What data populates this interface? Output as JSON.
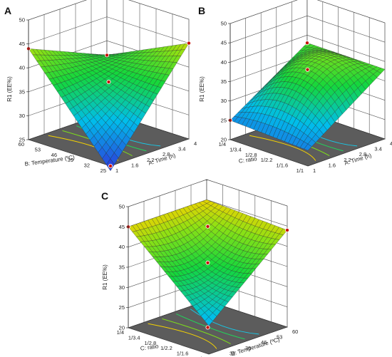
{
  "figure": {
    "panels": [
      {
        "letter": "A"
      },
      {
        "letter": "B"
      },
      {
        "letter": "C"
      }
    ]
  },
  "chart_data": [
    {
      "type": "surface",
      "panel": "A",
      "zlabel": "R1 (EE%)",
      "zlim": [
        25,
        50
      ],
      "zticks": [
        "25",
        "30",
        "35",
        "40",
        "45",
        "50"
      ],
      "xlabel": "A: Time (h)",
      "xticks": [
        "1",
        "1.6",
        "2.2",
        "2.8",
        "3.4",
        "4"
      ],
      "ylabel": "B: Temperature (ºC)",
      "yticks": [
        "25",
        "32",
        "39",
        "46",
        "53",
        "60"
      ],
      "corners": {
        "x_low_y_low": 24,
        "x_high_y_low": 45,
        "x_low_y_high": 44,
        "x_high_y_high": 37
      },
      "center": 37,
      "design_points": [
        {
          "x": 1,
          "y": 60,
          "z": 44
        },
        {
          "x": 4,
          "y": 25,
          "z": 45
        },
        {
          "x": 4,
          "y": 60,
          "z": 37
        },
        {
          "x": 2.5,
          "y": 42.5,
          "z": 37
        },
        {
          "x": 1,
          "y": 25,
          "z": 24
        }
      ]
    },
    {
      "type": "surface",
      "panel": "B",
      "zlabel": "R1 (EE%)",
      "zlim": [
        20,
        50
      ],
      "zticks": [
        "20",
        "25",
        "30",
        "35",
        "40",
        "45",
        "50"
      ],
      "xlabel": "A: Time (h)",
      "xticks": [
        "1",
        "1.6",
        "2.2",
        "2.8",
        "3.4",
        "4"
      ],
      "ylabel": "C: ratio",
      "yticks": [
        "1/1",
        "1/1.6",
        "1/2.2",
        "1/2.8",
        "1/3.4",
        "1/4"
      ],
      "corners": {
        "x_low_y_low": 24,
        "x_high_y_low": 38,
        "x_low_y_high": 25,
        "x_high_y_high": 38
      },
      "center": 38,
      "design_points": [
        {
          "x": 1,
          "y": 4,
          "z": 25
        },
        {
          "x": 2.5,
          "y": 2.5,
          "z": 38
        },
        {
          "x": 4,
          "y": 4,
          "z": 38
        }
      ]
    },
    {
      "type": "surface",
      "panel": "C",
      "zlabel": "R1 (EE%)",
      "zlim": [
        20,
        50
      ],
      "zticks": [
        "20",
        "25",
        "30",
        "35",
        "40",
        "45",
        "50"
      ],
      "xlabel": "B: Temperature (ºC)",
      "xticks": [
        "25",
        "32",
        "39",
        "46",
        "53",
        "60"
      ],
      "ylabel": "C: ratio",
      "yticks": [
        "1/1",
        "1/1.6",
        "1/2.2",
        "1/2.8",
        "1/3.4",
        "1/4"
      ],
      "corners": {
        "x_low_y_low": 27,
        "x_high_y_low": 44,
        "x_low_y_high": 45,
        "x_high_y_high": 45
      },
      "center": 36,
      "design_points": [
        {
          "x": 25,
          "y": 4,
          "z": 45
        },
        {
          "x": 42.5,
          "y": 2.5,
          "z": 45
        },
        {
          "x": 60,
          "y": 1,
          "z": 44
        },
        {
          "x": 42.5,
          "y": 2.5,
          "z": 36
        },
        {
          "x": 42.5,
          "y": 2.5,
          "z": 20
        }
      ]
    }
  ]
}
